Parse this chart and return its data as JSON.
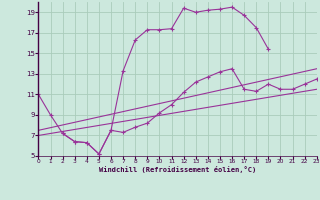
{
  "xlabel": "Windchill (Refroidissement éolien,°C)",
  "bg_color": "#cce8dd",
  "grid_color": "#aaccbb",
  "line_color": "#993399",
  "xmin": 0,
  "xmax": 23,
  "ymin": 5,
  "ymax": 20,
  "yticks": [
    5,
    7,
    9,
    11,
    13,
    15,
    17,
    19
  ],
  "xticks": [
    0,
    1,
    2,
    3,
    4,
    5,
    6,
    7,
    8,
    9,
    10,
    11,
    12,
    13,
    14,
    15,
    16,
    17,
    18,
    19,
    20,
    21,
    22,
    23
  ],
  "lines": [
    {
      "x": [
        0,
        1,
        2,
        3,
        4,
        5,
        6,
        7,
        8,
        9,
        10,
        11,
        12,
        13,
        14,
        15,
        16,
        17,
        18,
        19,
        20,
        21,
        22,
        23
      ],
      "y": [
        11.0,
        9.0,
        7.2,
        6.4,
        6.3,
        5.2,
        7.5,
        7.3,
        7.8,
        8.2,
        9.2,
        10.0,
        11.2,
        12.2,
        12.7,
        13.2,
        13.5,
        11.5,
        11.3,
        12.0,
        11.5,
        11.5,
        12.0,
        12.5
      ],
      "has_markers": true
    },
    {
      "x": [
        2,
        3,
        4,
        5,
        6,
        7,
        8,
        9,
        10,
        11,
        12,
        13,
        14,
        15,
        16,
        17,
        18,
        19
      ],
      "y": [
        7.2,
        6.4,
        6.3,
        5.2,
        7.5,
        13.3,
        16.3,
        17.3,
        17.3,
        17.4,
        19.4,
        19.0,
        19.2,
        19.3,
        19.5,
        18.7,
        17.5,
        15.4
      ],
      "has_markers": true
    },
    {
      "x": [
        0,
        23
      ],
      "y": [
        7.5,
        13.5
      ],
      "has_markers": false
    },
    {
      "x": [
        0,
        23
      ],
      "y": [
        7.0,
        11.5
      ],
      "has_markers": false
    }
  ]
}
